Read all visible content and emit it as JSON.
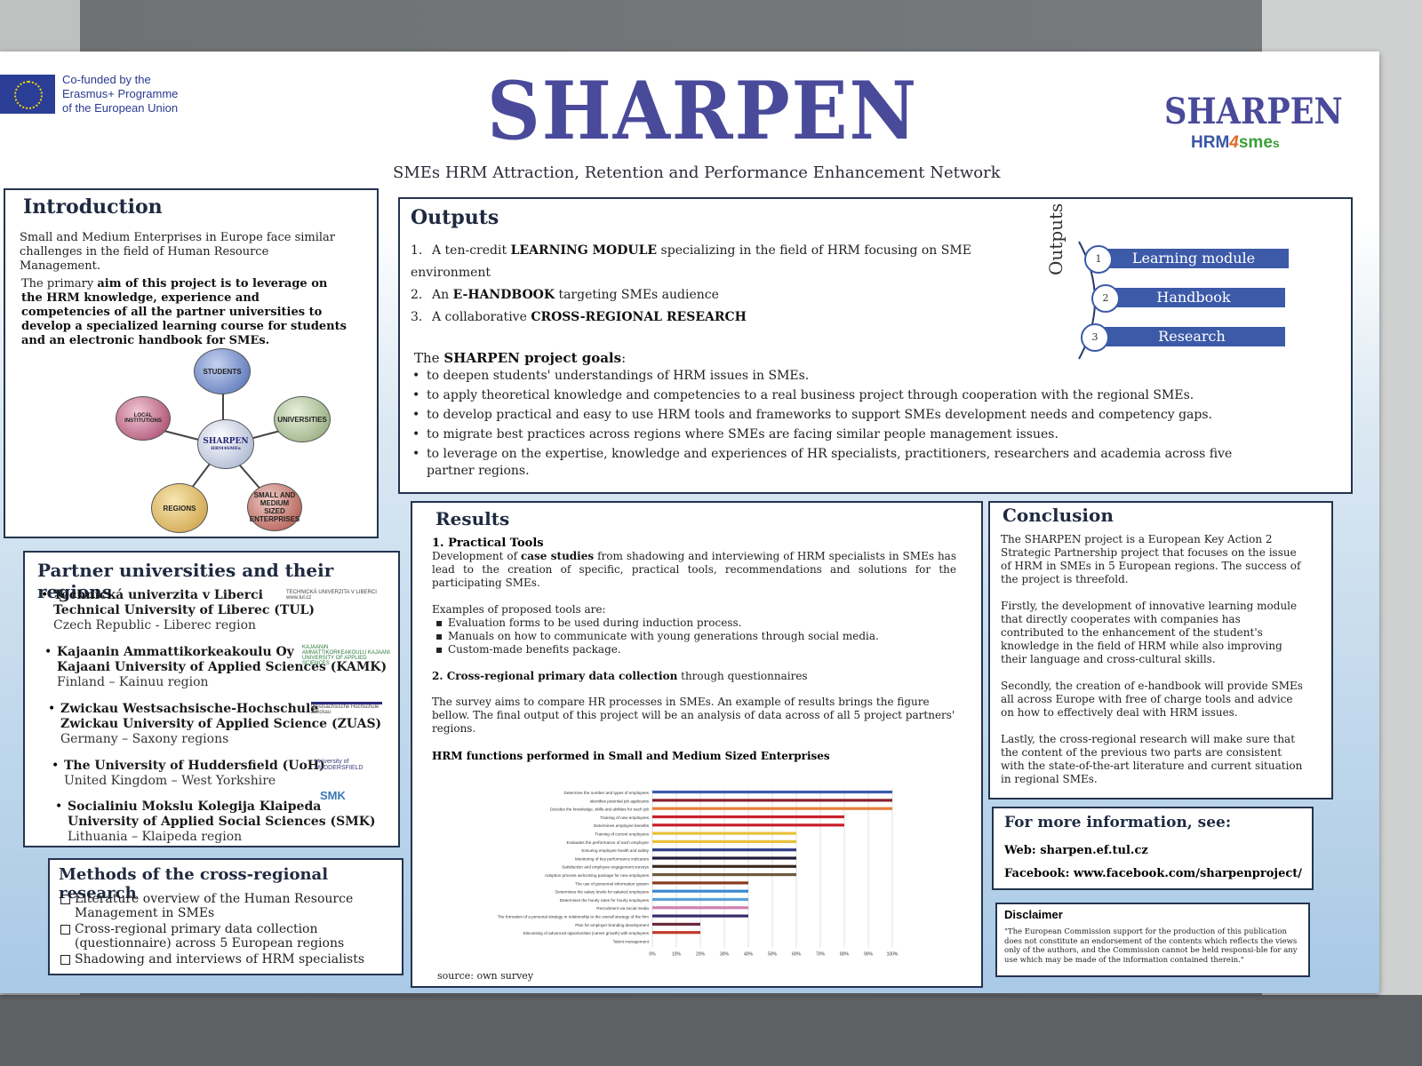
{
  "header": {
    "eu_line1": "Co-funded by the",
    "eu_line2": "Erasmus+ Programme",
    "eu_line3": "of the European Union",
    "title": "SHARPEN",
    "subtitle": "SMEs HRM Attraction, Retention and Performance Enhancement Network",
    "logo_main": "SHARPEN",
    "logo_sub_a": "HRM",
    "logo_sub_b": "4",
    "logo_sub_c": "sme",
    "logo_sub_d": "s"
  },
  "introduction": {
    "title": "Introduction",
    "p1": "Small and Medium Enterprises in Europe face similar challenges in the field of Human Resource Management.",
    "p2_a": "The primary ",
    "p2_b": "aim of this project is to leverage on the HRM knowledge, experience and competencies of all the partner universities to develop a specialized learning course for students and an electronic handbook for SMEs.",
    "diagram": {
      "center_line1": "SHARPEN",
      "center_line2": "HRM4SMEs",
      "students": "STUDENTS",
      "universities": "UNIVERSITIES",
      "smes": "SMALL AND MEDIUM SIZED ENTERPRISES",
      "regions": "REGIONS",
      "local": "LOCAL INSTITUTIONS"
    }
  },
  "partners": {
    "title": "Partner universities and their regions",
    "items": [
      {
        "name1": "Technická univerzita v Liberci",
        "name2": "Technical University of Liberec (TUL)",
        "region": "Czech Republic - Liberec region",
        "logo": "TECHNICKÁ UNIVERZITA V LIBERCI www.tul.cz"
      },
      {
        "name1": "Kajaanin Ammattikorkeakoulu Oy",
        "name2": "Kajaani University of Applied Sciences (KAMK)",
        "region": "Finland – Kainuu region",
        "logo": "KAJAANIN AMMATTIKORKEAKOULU KAJAANI UNIVERSITY OF APPLIED SCIENCES"
      },
      {
        "name1": "Zwickau Westsachsische-Hochschule",
        "name2": "Zwickau University of Applied Science (ZUAS)",
        "region": "Germany – Saxony regions",
        "logo": "Westsächsische Hochschule Zwickau"
      },
      {
        "name1": "The University of Huddersfield (UoH)",
        "name2": "",
        "region": "United Kingdom – West Yorkshire",
        "logo": "University of HUDDERSFIELD"
      },
      {
        "name1": "Socialiniu Mokslu Kolegija Klaipeda",
        "name2": "University of Applied Social Sciences (SMK)",
        "region": "Lithuania – Klaipeda region",
        "logo": "SMK"
      }
    ]
  },
  "methods": {
    "title": "Methods of the cross-regional research",
    "items": [
      "Literature overview of the Human Resource Management in SMEs",
      "Cross-regional primary data collection (questionnaire) across 5 European regions",
      "Shadowing  and interviews of HRM specialists"
    ]
  },
  "outputs": {
    "title": "Outputs",
    "items": [
      {
        "num": "1.",
        "pre": "A ten-credit ",
        "bold": "LEARNING MODULE",
        "post": " specializing in the field of HRM focusing on SME environment"
      },
      {
        "num": "2.",
        "pre": "An ",
        "bold": "E-HANDBOOK",
        "post": " targeting SMEs audience"
      },
      {
        "num": "3.",
        "pre": "A collaborative ",
        "bold": "CROSS-REGIONAL RESEARCH",
        "post": ""
      }
    ],
    "side_label": "Outputs",
    "boxes": [
      {
        "num": "1",
        "label": "Learning module"
      },
      {
        "num": "2",
        "label": "Handbook"
      },
      {
        "num": "3",
        "label": "Research"
      }
    ],
    "goals_pre": "The ",
    "goals_bold": "SHARPEN project goals",
    "goals_post": ":",
    "goals": [
      "to deepen students' understandings of HRM issues in SMEs.",
      "to apply theoretical knowledge and competencies to a real business project through cooperation with the regional SMEs.",
      "to develop practical and easy to use HRM tools and frameworks to support SMEs development needs and competency gaps.",
      "to migrate best practices across regions where SMEs are facing similar people management issues.",
      "to leverage on the expertise, knowledge and experiences of HR specialists, practitioners, researchers and academia across five partner regions."
    ]
  },
  "results": {
    "title": "Results",
    "s1_title": "1. Practical Tools",
    "s1_pre": "Development of ",
    "s1_bold": "case studies",
    "s1_post": " from shadowing and interviewing of HRM specialists in SMEs has lead to the creation of specific, practical tools, recommendations and solutions for the participating SMEs.",
    "examples_title": "Examples of proposed tools are:",
    "examples": [
      "Evaluation forms to be used during induction process.",
      "Manuals on how to communicate with young generations through social media.",
      "Custom-made benefits package."
    ],
    "s2_bold": "2. Cross-regional primary data collection",
    "s2_post": " through questionnaires",
    "s2_text": "The survey aims to compare HR processes in SMEs. An example of results brings the figure bellow. The final output of  this project will be an analysis of data across of all 5 project partners' regions.",
    "chart_title": "HRM functions performed in Small and Medium Sized Enterprises",
    "source": "source: own survey"
  },
  "chart_data": {
    "type": "bar",
    "orientation": "horizontal",
    "title": "HRM functions performed in Small and Medium Sized Enterprises",
    "xlim": [
      0,
      100
    ],
    "xticks": [
      "0%",
      "10%",
      "20%",
      "30%",
      "40%",
      "50%",
      "60%",
      "70%",
      "80%",
      "90%",
      "100%"
    ],
    "grid": true,
    "categories": [
      "Determine the number and types of employees",
      "Identifies potential job applicants",
      "Decides the knowledge, skills and abilities for each job",
      "Training of new employees",
      "Determines employee benefits",
      "Training of current employees",
      "Evaluates the performance of each employee",
      "Ensuring employee health and safety",
      "Monitoring of key performance indicators",
      "Satisfaction and employee engagement surveys",
      "Adoption process welcoming package for new employees",
      "The use of personnel information system",
      "Determines the salary levels for salaried employees",
      "Determines the hourly rates for hourly employees",
      "Recruitment via social media",
      "The formation of a personal strategy in relationship to the overall strategy of the firm",
      "Plan for employer branding development",
      "Discussing of advanced opportunities (career growth) with employees",
      "Talent management"
    ],
    "values": [
      100,
      100,
      100,
      80,
      80,
      60,
      60,
      60,
      60,
      60,
      60,
      40,
      40,
      40,
      40,
      40,
      20,
      20,
      0
    ],
    "colors": [
      "#3b5bb0",
      "#8a1f2e",
      "#e8803a",
      "#c8202b",
      "#c8202b",
      "#e8c13a",
      "#e8c13a",
      "#2f3b86",
      "#1d1d3a",
      "#3a2a1e",
      "#6e5a3a",
      "#8a3a1e",
      "#3b8ad0",
      "#5aa0d8",
      "#d080b0",
      "#3a2a6e",
      "#6a2a3a",
      "#c03a2a",
      "#888888"
    ]
  },
  "conclusion": {
    "title": "Conclusion",
    "p1": "The SHARPEN project is a European Key Action 2 Strategic Partnership project that focuses on the issue of HRM in SMEs in 5 European regions. The success of the project is threefold.",
    "p2": "Firstly, the development of  innovative learning module that directly cooperates with companies has contributed to the enhancement of the student's knowledge in the field of HRM while also improving their language and cross-cultural skills.",
    "p3": "Secondly, the creation of e-handbook will provide SMEs all across Europe with free of charge tools and advice on how to effectively deal with HRM issues.",
    "p4": "Lastly, the cross-regional research will make sure that the content of the previous two parts are consistent with the state-of-the-art literature and current situation in regional SMEs."
  },
  "info": {
    "title": "For more information, see:",
    "web": "Web: sharpen.ef.tul.cz",
    "facebook": "Facebook: www.facebook.com/sharpenproject/"
  },
  "disclaimer": {
    "title": "Disclaimer",
    "text": "\"The European Commission support for the production of this publication does not constitute an endorsement of the contents which reflects the views only of the authors, and the Commission cannot be held responsi-ble for any use which may be made of the information contained therein.\""
  }
}
